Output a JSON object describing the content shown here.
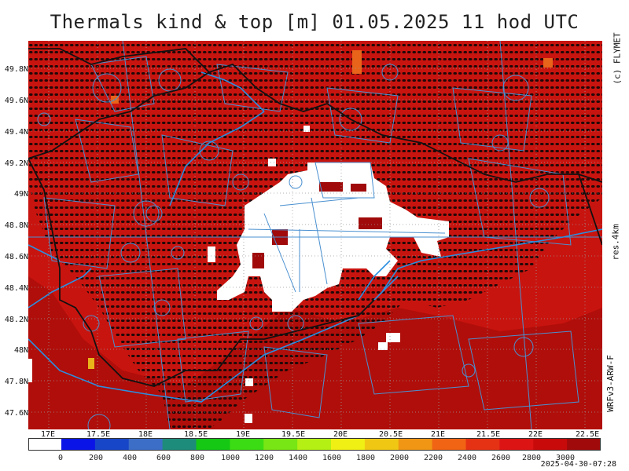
{
  "title": "Thermals kind & top [m]  01.05.2025 11 hod UTC",
  "copyright": "(c) FLYMET",
  "resolution": "res.4km",
  "model": "WRFv3-ARW-F",
  "timestamp": "2025-04-30-07:28",
  "lat_labels": [
    "49.8N",
    "49.6N",
    "49.4N",
    "49.2N",
    "49N",
    "48.8N",
    "48.6N",
    "48.4N",
    "48.2N",
    "48N",
    "47.8N",
    "47.6N"
  ],
  "lon_labels": [
    "17E",
    "17.5E",
    "18E",
    "18.5E",
    "19E",
    "19.5E",
    "20E",
    "20.5E",
    "21E",
    "21.5E",
    "22E",
    "22.5E"
  ],
  "colorbar": {
    "labels": [
      "0",
      "200",
      "400",
      "600",
      "800",
      "1000",
      "1200",
      "1400",
      "1600",
      "1800",
      "2000",
      "2200",
      "2400",
      "2600",
      "2800",
      "3000"
    ],
    "colors": [
      "#ffffff",
      "#0a14e6",
      "#1846c8",
      "#3c6ec8",
      "#1e8c7a",
      "#14c814",
      "#3cdc14",
      "#78e614",
      "#b4f014",
      "#f0f014",
      "#f0c814",
      "#f09614",
      "#f06414",
      "#e63214",
      "#dc1414",
      "#c80a0a",
      "#a00a0a"
    ]
  },
  "map": {
    "background_color": "#c8140f",
    "dark_color": "#a00a0a",
    "clear_color": "#ffffff",
    "border_color": "#1a1a1a",
    "river_color": "#2b8fe0",
    "airspace_color": "#4a90d0"
  }
}
